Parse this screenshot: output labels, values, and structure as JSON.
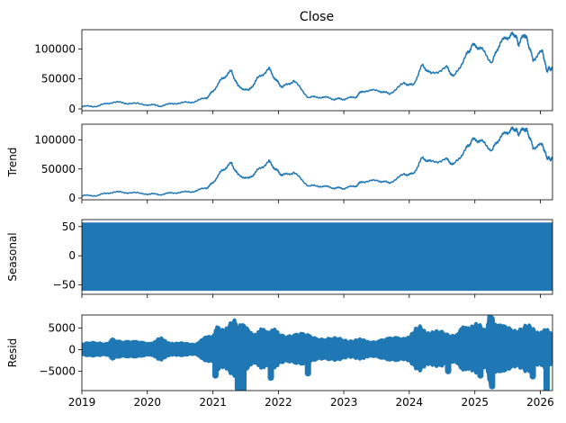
{
  "figure": {
    "title": "Close"
  },
  "chart_data": {
    "type": "line",
    "layout": "4 stacked subplots sharing x axis (seasonal decomposition)",
    "x_axis": {
      "type": "date",
      "range": [
        "2019-01-01",
        "2026-03-10"
      ],
      "ticks": [
        "2019",
        "2020",
        "2021",
        "2022",
        "2023",
        "2024",
        "2025",
        "2026"
      ]
    },
    "color": "#1f77b4",
    "panels": [
      {
        "id": "close",
        "title": "Close",
        "ylabel": "",
        "kind": "line",
        "ylim": [
          -3000,
          132000
        ],
        "yticks": [
          0,
          50000,
          100000
        ],
        "ytick_labels": [
          "0",
          "50000",
          "100000"
        ],
        "points": [
          [
            "2019-01-01",
            3700
          ],
          [
            "2019-04-01",
            5000
          ],
          [
            "2019-06-25",
            11500
          ],
          [
            "2019-09-15",
            9500
          ],
          [
            "2019-12-31",
            7200
          ],
          [
            "2020-03-13",
            5000
          ],
          [
            "2020-06-01",
            9500
          ],
          [
            "2020-09-01",
            11000
          ],
          [
            "2020-11-25",
            18000
          ],
          [
            "2020-12-31",
            29000
          ],
          [
            "2021-02-20",
            50000
          ],
          [
            "2021-04-14",
            63000
          ],
          [
            "2021-05-20",
            38000
          ],
          [
            "2021-07-20",
            30000
          ],
          [
            "2021-09-05",
            50000
          ],
          [
            "2021-11-10",
            67000
          ],
          [
            "2021-12-20",
            47000
          ],
          [
            "2022-01-24",
            36000
          ],
          [
            "2022-03-28",
            47000
          ],
          [
            "2022-06-18",
            19000
          ],
          [
            "2022-09-01",
            20000
          ],
          [
            "2022-11-09",
            16500
          ],
          [
            "2022-12-31",
            16500
          ],
          [
            "2023-03-10",
            20000
          ],
          [
            "2023-04-14",
            30000
          ],
          [
            "2023-07-15",
            30500
          ],
          [
            "2023-09-11",
            25000
          ],
          [
            "2023-12-05",
            43000
          ],
          [
            "2024-01-23",
            39000
          ],
          [
            "2024-03-14",
            73000
          ],
          [
            "2024-05-01",
            58000
          ],
          [
            "2024-07-29",
            69000
          ],
          [
            "2024-09-06",
            53000
          ],
          [
            "2024-11-12",
            88000
          ],
          [
            "2024-12-17",
            106000
          ],
          [
            "2025-02-01",
            102000
          ],
          [
            "2025-04-07",
            77000
          ],
          [
            "2025-05-22",
            111000
          ],
          [
            "2025-07-14",
            122000
          ],
          [
            "2025-08-14",
            124000
          ],
          [
            "2025-09-01",
            108000
          ],
          [
            "2025-10-06",
            125000
          ],
          [
            "2025-10-25",
            110000
          ],
          [
            "2025-11-21",
            82000
          ],
          [
            "2026-01-14",
            97000
          ],
          [
            "2026-02-05",
            63000
          ],
          [
            "2026-02-20",
            68000
          ],
          [
            "2026-03-10",
            66000
          ]
        ]
      },
      {
        "id": "trend",
        "title": "",
        "ylabel": "Trend",
        "kind": "line",
        "ylim": [
          -3000,
          127000
        ],
        "yticks": [
          0,
          50000,
          100000
        ],
        "ytick_labels": [
          "0",
          "50000",
          "100000"
        ],
        "points": [
          [
            "2019-01-01",
            3800
          ],
          [
            "2019-04-01",
            4800
          ],
          [
            "2019-06-25",
            10500
          ],
          [
            "2019-09-15",
            9500
          ],
          [
            "2019-12-31",
            7300
          ],
          [
            "2020-03-13",
            6200
          ],
          [
            "2020-06-01",
            9300
          ],
          [
            "2020-09-01",
            10800
          ],
          [
            "2020-11-25",
            17000
          ],
          [
            "2020-12-31",
            26000
          ],
          [
            "2021-02-20",
            47000
          ],
          [
            "2021-04-14",
            60000
          ],
          [
            "2021-05-20",
            40000
          ],
          [
            "2021-07-20",
            33000
          ],
          [
            "2021-09-05",
            47000
          ],
          [
            "2021-11-10",
            63000
          ],
          [
            "2021-12-20",
            48000
          ],
          [
            "2022-01-24",
            39000
          ],
          [
            "2022-03-28",
            44000
          ],
          [
            "2022-06-18",
            21000
          ],
          [
            "2022-09-01",
            20500
          ],
          [
            "2022-11-09",
            17500
          ],
          [
            "2022-12-31",
            16800
          ],
          [
            "2023-03-10",
            21000
          ],
          [
            "2023-04-14",
            28500
          ],
          [
            "2023-07-15",
            30000
          ],
          [
            "2023-09-11",
            26000
          ],
          [
            "2023-12-05",
            41000
          ],
          [
            "2024-01-23",
            41000
          ],
          [
            "2024-03-14",
            69000
          ],
          [
            "2024-05-01",
            62000
          ],
          [
            "2024-07-29",
            66000
          ],
          [
            "2024-09-06",
            57000
          ],
          [
            "2024-11-12",
            84000
          ],
          [
            "2024-12-17",
            100000
          ],
          [
            "2025-02-01",
            99000
          ],
          [
            "2025-04-07",
            82000
          ],
          [
            "2025-05-22",
            105000
          ],
          [
            "2025-07-14",
            116000
          ],
          [
            "2025-08-14",
            119000
          ],
          [
            "2025-09-01",
            111000
          ],
          [
            "2025-10-06",
            120000
          ],
          [
            "2025-10-25",
            112000
          ],
          [
            "2025-11-21",
            87000
          ],
          [
            "2026-01-14",
            92000
          ],
          [
            "2026-02-05",
            70000
          ],
          [
            "2026-02-20",
            68000
          ],
          [
            "2026-03-10",
            67000
          ]
        ]
      },
      {
        "id": "seasonal",
        "title": "",
        "ylabel": "Seasonal",
        "kind": "band",
        "ylim": [
          -66,
          62
        ],
        "yticks": [
          -50,
          0,
          50
        ],
        "ytick_labels": [
          "−50",
          "0",
          "50"
        ],
        "band": {
          "low": -60,
          "high": 57
        }
      },
      {
        "id": "resid",
        "title": "",
        "ylabel": "Resid",
        "kind": "resid",
        "ylim": [
          -9500,
          8000
        ],
        "yticks": [
          -5000,
          0,
          5000
        ],
        "ytick_labels": [
          "−5000",
          "0",
          "5000"
        ],
        "points": [
          [
            "2019-01-01",
            0,
            1200
          ],
          [
            "2019-06-01",
            0,
            1500
          ],
          [
            "2019-07-01",
            0,
            2200
          ],
          [
            "2019-12-31",
            0,
            1200
          ],
          [
            "2020-03-13",
            0,
            2200
          ],
          [
            "2020-06-01",
            0,
            1200
          ],
          [
            "2020-10-01",
            0,
            1300
          ],
          [
            "2020-12-31",
            0,
            3200
          ],
          [
            "2021-02-01",
            0,
            4500
          ],
          [
            "2021-05-01",
            0,
            5500
          ],
          [
            "2021-06-01",
            0,
            5000
          ],
          [
            "2021-09-01",
            0,
            3500
          ],
          [
            "2021-11-01",
            0,
            4200
          ],
          [
            "2022-01-01",
            0,
            3500
          ],
          [
            "2022-06-01",
            0,
            3000
          ],
          [
            "2022-11-01",
            0,
            2200
          ],
          [
            "2023-03-01",
            0,
            2000
          ],
          [
            "2023-06-01",
            0,
            1800
          ],
          [
            "2023-12-01",
            0,
            2500
          ],
          [
            "2024-03-01",
            0,
            4500
          ],
          [
            "2024-06-01",
            0,
            3500
          ],
          [
            "2024-10-01",
            0,
            3500
          ],
          [
            "2024-12-01",
            0,
            5500
          ],
          [
            "2025-03-01",
            0,
            4200
          ],
          [
            "2025-04-01",
            0,
            7500
          ],
          [
            "2025-06-01",
            0,
            4500
          ],
          [
            "2025-10-01",
            0,
            4800
          ],
          [
            "2026-01-01",
            0,
            4000
          ],
          [
            "2026-03-10",
            0,
            3500
          ]
        ],
        "dips": [
          [
            "2021-01-15",
            -6000
          ],
          [
            "2021-05-20",
            -9000
          ],
          [
            "2021-06-20",
            -9200
          ],
          [
            "2021-11-20",
            -6500
          ],
          [
            "2022-06-15",
            -5500
          ],
          [
            "2024-08-05",
            -5000
          ],
          [
            "2025-02-01",
            -6000
          ],
          [
            "2025-04-07",
            -8500
          ],
          [
            "2025-11-20",
            -6200
          ],
          [
            "2026-02-05",
            -9300
          ]
        ]
      }
    ]
  }
}
